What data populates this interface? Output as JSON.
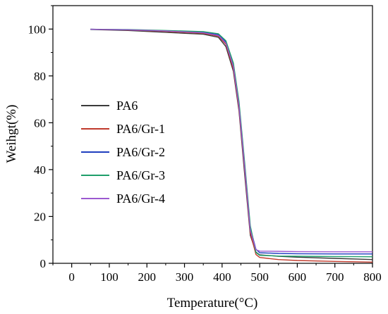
{
  "chart_data": {
    "type": "line",
    "title": "",
    "xlabel": "Temperature(°C)",
    "ylabel": "Weihgt(%)",
    "xlim": [
      -50,
      800
    ],
    "ylim": [
      0,
      110
    ],
    "xticks": [
      0,
      100,
      200,
      300,
      400,
      500,
      600,
      700,
      800
    ],
    "yticks": [
      0,
      20,
      40,
      60,
      80,
      100
    ],
    "grid": false,
    "legend_position": "left-middle",
    "series": [
      {
        "name": "PA6",
        "color": "#3a3a3a",
        "points": [
          [
            50,
            99.8
          ],
          [
            150,
            99.4
          ],
          [
            250,
            98.6
          ],
          [
            350,
            97.8
          ],
          [
            390,
            96.5
          ],
          [
            410,
            92.5
          ],
          [
            430,
            82
          ],
          [
            445,
            65
          ],
          [
            460,
            38
          ],
          [
            475,
            12
          ],
          [
            490,
            4.8
          ],
          [
            500,
            3.6
          ],
          [
            550,
            3.0
          ],
          [
            600,
            2.6
          ],
          [
            700,
            2.1
          ],
          [
            800,
            1.6
          ]
        ]
      },
      {
        "name": "PA6/Gr-1",
        "color": "#c0392b",
        "points": [
          [
            50,
            99.9
          ],
          [
            150,
            99.6
          ],
          [
            250,
            99.0
          ],
          [
            350,
            98.2
          ],
          [
            390,
            97.0
          ],
          [
            410,
            93.5
          ],
          [
            430,
            83
          ],
          [
            445,
            66
          ],
          [
            460,
            40
          ],
          [
            475,
            13
          ],
          [
            490,
            3.8
          ],
          [
            500,
            2.5
          ],
          [
            550,
            1.6
          ],
          [
            600,
            1.2
          ],
          [
            700,
            0.8
          ],
          [
            800,
            0.5
          ]
        ]
      },
      {
        "name": "PA6/Gr-2",
        "color": "#1f3fbf",
        "points": [
          [
            50,
            99.9
          ],
          [
            150,
            99.7
          ],
          [
            250,
            99.2
          ],
          [
            350,
            98.6
          ],
          [
            390,
            97.6
          ],
          [
            410,
            94.5
          ],
          [
            430,
            85
          ],
          [
            445,
            68
          ],
          [
            460,
            42
          ],
          [
            475,
            15
          ],
          [
            490,
            6.0
          ],
          [
            500,
            4.5
          ],
          [
            550,
            4.2
          ],
          [
            600,
            4.1
          ],
          [
            700,
            4.0
          ],
          [
            800,
            4.0
          ]
        ]
      },
      {
        "name": "PA6/Gr-3",
        "color": "#1e9e6a",
        "points": [
          [
            50,
            99.9
          ],
          [
            150,
            99.8
          ],
          [
            250,
            99.4
          ],
          [
            350,
            98.9
          ],
          [
            390,
            98.0
          ],
          [
            410,
            95.0
          ],
          [
            430,
            85.5
          ],
          [
            445,
            69
          ],
          [
            460,
            43
          ],
          [
            475,
            16
          ],
          [
            490,
            4.6
          ],
          [
            500,
            3.4
          ],
          [
            550,
            3.1
          ],
          [
            600,
            3.0
          ],
          [
            700,
            2.9
          ],
          [
            800,
            2.8
          ]
        ]
      },
      {
        "name": "PA6/Gr-4",
        "color": "#9b59d0",
        "points": [
          [
            50,
            99.9
          ],
          [
            150,
            99.7
          ],
          [
            250,
            99.2
          ],
          [
            350,
            98.4
          ],
          [
            390,
            97.3
          ],
          [
            410,
            94.0
          ],
          [
            430,
            84
          ],
          [
            445,
            67
          ],
          [
            460,
            41
          ],
          [
            475,
            14
          ],
          [
            490,
            5.8
          ],
          [
            500,
            5.2
          ],
          [
            550,
            5.1
          ],
          [
            600,
            5.0
          ],
          [
            700,
            4.9
          ],
          [
            800,
            4.9
          ]
        ]
      }
    ]
  }
}
